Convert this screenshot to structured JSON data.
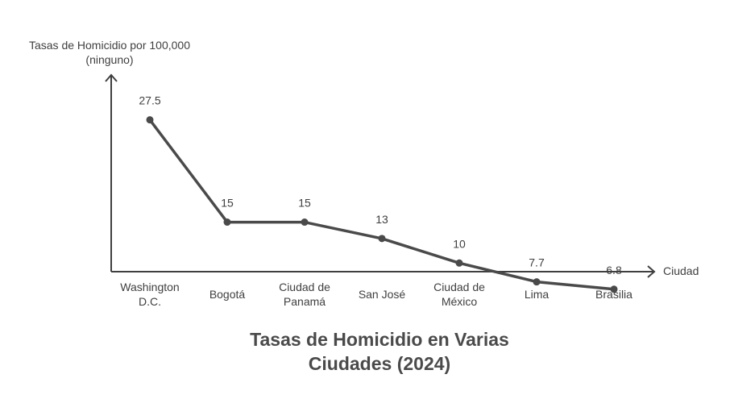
{
  "chart_data": {
    "type": "line",
    "title": [
      "Tasas de Homicidio en Varias",
      "Ciudades (2024)"
    ],
    "xlabel": "Ciudad",
    "ylabel": [
      "Tasas de Homicidio por 100,000",
      "(ninguno)"
    ],
    "categories": [
      [
        "Washington",
        "D.C."
      ],
      [
        "Bogotá"
      ],
      [
        "Ciudad de",
        "Panamá"
      ],
      [
        "San José"
      ],
      [
        "Ciudad de",
        "México"
      ],
      [
        "Lima"
      ],
      [
        "Brasilia"
      ]
    ],
    "values": [
      27.5,
      15,
      15,
      13,
      10,
      7.7,
      6.8
    ],
    "data_labels": [
      "27.5",
      "15",
      "15",
      "13",
      "10",
      "7.7",
      "6.8"
    ],
    "ylim": [
      0,
      30
    ],
    "grid": false,
    "legend": "none",
    "colors": {
      "line": "#4a4a4a",
      "axis": "#3f3f3f",
      "text": "#3f3f3f"
    }
  }
}
